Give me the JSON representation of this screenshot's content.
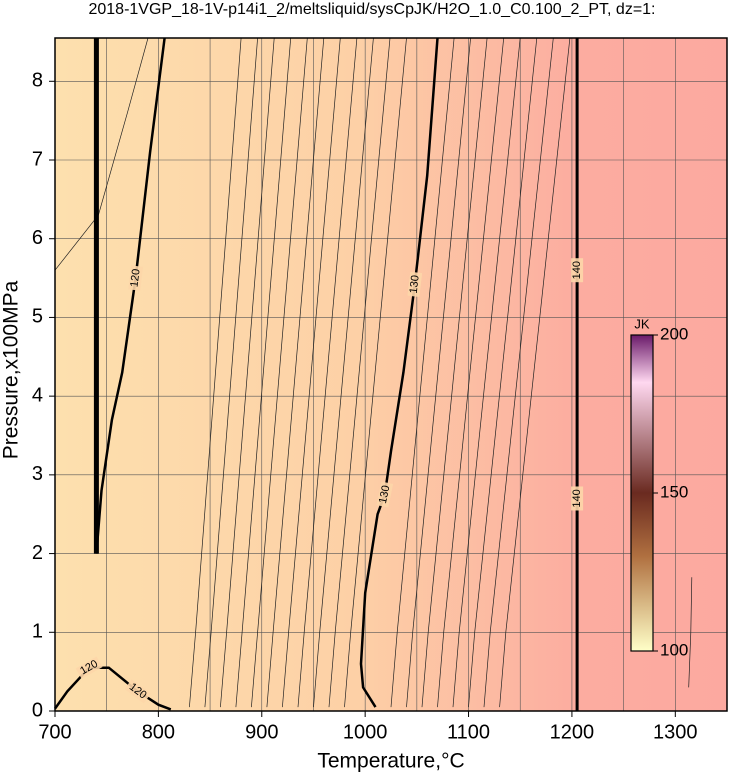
{
  "chart_data": {
    "type": "contour",
    "title": "2018-1VGP_18-1V-p14i1_2/meltsliquid/sysCpJK/H2O_1.0_C0.100_2_PT, dz=1:",
    "x_label": "Temperature,°C",
    "y_label": "Pressure,x100MPa",
    "xlim": [
      700,
      1350
    ],
    "ylim": [
      0,
      8.55
    ],
    "xticks": [
      700,
      800,
      900,
      1000,
      1100,
      1200,
      1300
    ],
    "yticks": [
      0,
      1,
      2,
      3,
      4,
      5,
      6,
      7,
      8
    ],
    "xgrid": [
      750,
      800,
      850,
      900,
      950,
      1000,
      1050,
      1100,
      1150,
      1200,
      1250,
      1300
    ],
    "grid": true,
    "contours": [
      {
        "level": 120,
        "x": [
          740,
          745,
          755,
          765,
          778,
          792,
          806
        ],
        "y": [
          2.0,
          2.8,
          3.7,
          4.3,
          5.5,
          7.1,
          8.55
        ]
      },
      {
        "level": 120,
        "x": [
          740,
          740
        ],
        "y": [
          2.0,
          8.55
        ]
      },
      {
        "level": 120,
        "x": [
          700,
          712,
          733,
          752,
          780,
          800,
          812
        ],
        "y": [
          0.03,
          0.25,
          0.55,
          0.55,
          0.25,
          0.08,
          0.02
        ]
      },
      {
        "level": 130,
        "x": [
          1010,
          998,
          996,
          1000,
          1012,
          1019,
          1025,
          1037,
          1048,
          1060,
          1070
        ],
        "y": [
          0.05,
          0.3,
          0.6,
          1.5,
          2.5,
          2.75,
          3.3,
          4.3,
          5.42,
          6.8,
          8.55
        ]
      },
      {
        "level": 140,
        "x": [
          1205,
          1205,
          1205,
          1205
        ],
        "y": [
          0,
          2.7,
          5.6,
          8.55
        ]
      }
    ],
    "thin_contours": [
      {
        "x": [
          700,
          742,
          770,
          790
        ],
        "y": [
          5.6,
          6.3,
          7.6,
          8.55
        ]
      },
      {
        "x": [
          830,
          836,
          880
        ],
        "y": [
          0.05,
          1.0,
          8.55
        ]
      },
      {
        "x": [
          845,
          851,
          896
        ],
        "y": [
          0.05,
          1.0,
          8.55
        ]
      },
      {
        "x": [
          860,
          866,
          912
        ],
        "y": [
          0.05,
          1.0,
          8.55
        ]
      },
      {
        "x": [
          875,
          881,
          928
        ],
        "y": [
          0.05,
          1.0,
          8.55
        ]
      },
      {
        "x": [
          890,
          896,
          944
        ],
        "y": [
          0.05,
          1.0,
          8.55
        ]
      },
      {
        "x": [
          905,
          911,
          960
        ],
        "y": [
          0.05,
          1.0,
          8.55
        ]
      },
      {
        "x": [
          920,
          926,
          976
        ],
        "y": [
          0.05,
          1.0,
          8.55
        ]
      },
      {
        "x": [
          935,
          941,
          992
        ],
        "y": [
          0.05,
          1.0,
          8.55
        ]
      },
      {
        "x": [
          950,
          956,
          1008
        ],
        "y": [
          0.05,
          1.0,
          8.55
        ]
      },
      {
        "x": [
          965,
          971,
          1024
        ],
        "y": [
          0.05,
          1.0,
          8.55
        ]
      },
      {
        "x": [
          980,
          986,
          1040
        ],
        "y": [
          0.05,
          1.0,
          8.55
        ]
      },
      {
        "x": [
          1025,
          1031,
          1086
        ],
        "y": [
          0.05,
          1.0,
          8.55
        ]
      },
      {
        "x": [
          1040,
          1046,
          1102
        ],
        "y": [
          0.05,
          1.0,
          8.55
        ]
      },
      {
        "x": [
          1055,
          1061,
          1118
        ],
        "y": [
          0.05,
          1.0,
          8.55
        ]
      },
      {
        "x": [
          1070,
          1076,
          1134
        ],
        "y": [
          0.05,
          1.0,
          8.55
        ]
      },
      {
        "x": [
          1085,
          1091,
          1150
        ],
        "y": [
          0.05,
          1.0,
          8.55
        ]
      },
      {
        "x": [
          1100,
          1106,
          1166
        ],
        "y": [
          0.05,
          1.0,
          8.55
        ]
      },
      {
        "x": [
          1115,
          1121,
          1182
        ],
        "y": [
          0.05,
          1.0,
          8.55
        ]
      },
      {
        "x": [
          1130,
          1136,
          1198
        ],
        "y": [
          0.05,
          1.0,
          8.55
        ]
      },
      {
        "x": [
          1313,
          1315,
          1316
        ],
        "y": [
          0.3,
          1.0,
          1.7
        ]
      }
    ],
    "colorbar": {
      "label": "JK",
      "lim": [
        100,
        200
      ],
      "ticks": [
        100,
        150,
        200
      ],
      "colormap": [
        {
          "value": 100,
          "color": "#ffffc8"
        },
        {
          "value": 130,
          "color": "#b07040"
        },
        {
          "value": 150,
          "color": "#6a2a20"
        },
        {
          "value": 185,
          "color": "#ffd8f0"
        },
        {
          "value": 200,
          "color": "#6a1a6a"
        }
      ]
    }
  }
}
